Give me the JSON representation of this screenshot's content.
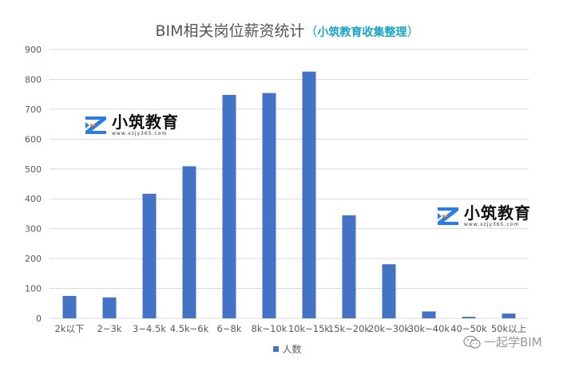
{
  "chart_data": {
    "type": "bar",
    "title": "BIM相关岗位薪资统计",
    "subtitle": "小筑教育收集整理",
    "categories": [
      "2k以下",
      "2~3k",
      "3~4.5k",
      "4.5k~6k",
      "6~8k",
      "8k~10k",
      "10k~15k",
      "15k~20k",
      "20k~30k",
      "30k~40k",
      "40~50k",
      "50k以上"
    ],
    "series": [
      {
        "name": "人数",
        "values": [
          75,
          70,
          417,
          509,
          748,
          754,
          826,
          345,
          181,
          23,
          5,
          16
        ]
      }
    ],
    "ylim": [
      0,
      900
    ],
    "yticks": [
      0,
      100,
      200,
      300,
      400,
      500,
      600,
      700,
      800,
      900
    ],
    "grid": true,
    "legend_position": "bottom",
    "bar_color": "#4472c4"
  },
  "logos": [
    {
      "name": "小筑教育",
      "url": "www.xzjy365.com"
    },
    {
      "name": "小筑教育",
      "url": "www.xzjy365.com"
    }
  ],
  "watermark": {
    "text": "一起学BIM",
    "icon": "wechat-icon"
  },
  "colors": {
    "accent": "#19a4c4",
    "logo_blue": "#2a7de1",
    "logo_orange": "#f08a24"
  }
}
